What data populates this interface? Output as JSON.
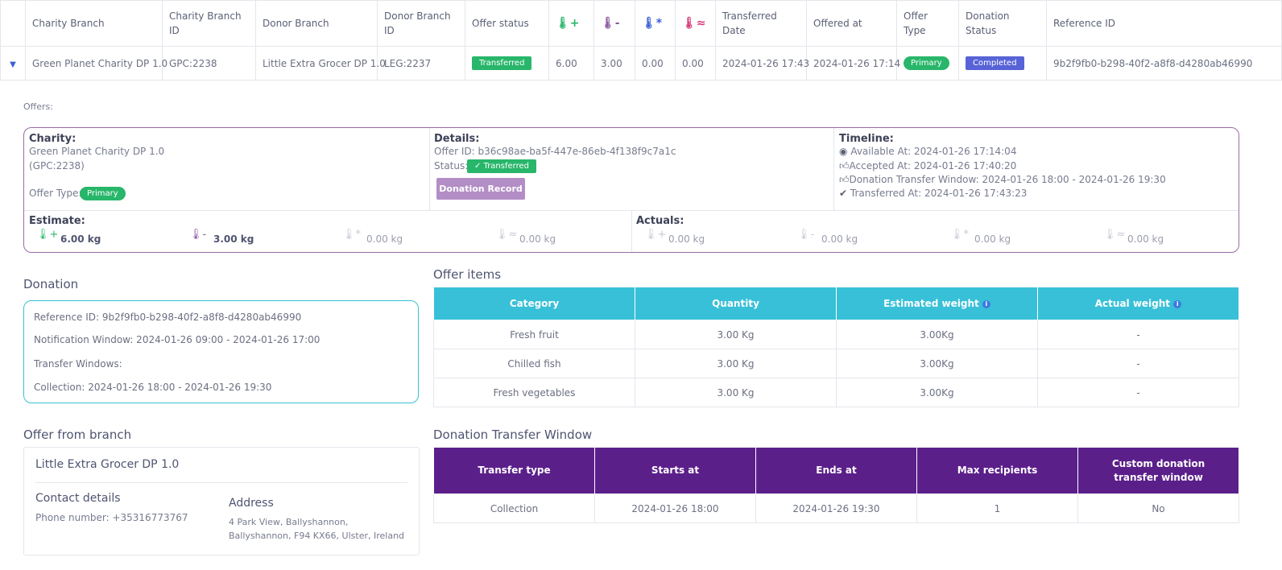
{
  "top_table": {
    "headers": {
      "charity_branch": "Charity Branch",
      "charity_branch_id": "Charity Branch ID",
      "donor_branch": "Donor Branch",
      "donor_branch_id": "Donor Branch ID",
      "offer_status": "Offer status",
      "transferred_date": "Transferred Date",
      "offered_at": "Offered at",
      "offer_type": "Offer Type",
      "donation_status": "Donation Status",
      "reference_id": "Reference ID"
    },
    "row": {
      "charity_branch": "Green Planet Charity DP 1.0",
      "charity_branch_id": "GPC:2238",
      "donor_branch": "Little Extra Grocer DP 1.0",
      "donor_branch_id": "LEG:2237",
      "offer_status": "Transferred",
      "ambient": "6.00",
      "chilled": "3.00",
      "frozen": "0.00",
      "hot": "0.00",
      "transferred_date": "2024-01-26 17:43",
      "offered_at": "2024-01-26 17:14",
      "offer_type": "Primary",
      "donation_status": "Completed",
      "reference_id": "9b2f9fb0-b298-40f2-a8f8-d4280ab46990"
    }
  },
  "offers": {
    "label": "Offers:",
    "charity": {
      "title": "Charity:",
      "name": "Green Planet Charity DP 1.0",
      "id": "(GPC:2238)",
      "offer_type_label": "Offer Type:",
      "offer_type": "Primary"
    },
    "details": {
      "title": "Details:",
      "offer_id": "Offer ID: b36c98ae-ba5f-447e-86eb-4f138f9c7a1c",
      "status_label": "Status:",
      "status": "✓ Transferred",
      "record_button": "Donation Record"
    },
    "timeline": {
      "title": "Timeline:",
      "available": "Available At:  2024-01-26 17:14:04",
      "accepted": "Accepted At:  2024-01-26 17:40:20",
      "window": "Donation Transfer Window: 2024-01-26 18:00 - 2024-01-26 19:30",
      "transferred": "Transferred At:  2024-01-26 17:43:23"
    },
    "estimate": {
      "title": "Estimate:",
      "ambient": "6.00 kg",
      "chilled": "3.00 kg",
      "frozen": "0.00 kg",
      "hot": "0.00 kg"
    },
    "actuals": {
      "title": "Actuals:",
      "ambient": "0.00 kg",
      "chilled": "0.00 kg",
      "frozen": "0.00 kg",
      "hot": "0.00 kg"
    }
  },
  "donation": {
    "title": "Donation",
    "reference": "Reference ID: 9b2f9fb0-b298-40f2-a8f8-d4280ab46990",
    "notification": "Notification Window: 2024-01-26 09:00 - 2024-01-26 17:00",
    "transfer_windows": "Transfer Windows:",
    "collection": "Collection: 2024-01-26 18:00 - 2024-01-26 19:30"
  },
  "offer_items": {
    "title": "Offer items",
    "headers": [
      "Category",
      "Quantity",
      "Estimated weight",
      "Actual weight"
    ],
    "rows": [
      [
        "Fresh fruit",
        "3.00 Kg",
        "3.00Kg",
        "-"
      ],
      [
        "Chilled fish",
        "3.00 Kg",
        "3.00Kg",
        "-"
      ],
      [
        "Fresh vegetables",
        "3.00 Kg",
        "3.00Kg",
        "-"
      ]
    ]
  },
  "offer_from_branch": {
    "title": "Offer from branch",
    "name": "Little Extra Grocer DP 1.0",
    "contact_title": "Contact details",
    "phone": "Phone number: +35316773767",
    "address_title": "Address",
    "address_line1": "4 Park View, Ballyshannon,",
    "address_line2": "Ballyshannon, F94 KX66, Ulster, Ireland"
  },
  "transfer_window": {
    "title": "Donation Transfer Window",
    "headers": [
      "Transfer type",
      "Starts at",
      "Ends at",
      "Max recipients",
      "Custom donation transfer window"
    ],
    "rows": [
      [
        "Collection",
        "2024-01-26 18:00",
        "2024-01-26 19:30",
        "1",
        "No"
      ]
    ]
  },
  "colors": {
    "ambient": "#28b66a",
    "chilled": "#8a5aa0",
    "frozen": "#3b5fd6",
    "hot": "#d63b7a",
    "items_header": "#38c0d8",
    "window_header": "#5b1f8a",
    "card_border": "#9a6ba8"
  },
  "icons": {
    "ambient": "thermometer-plus-icon",
    "chilled": "thermometer-minus-icon",
    "frozen": "thermometer-snowflake-icon",
    "hot": "thermometer-heat-icon"
  }
}
